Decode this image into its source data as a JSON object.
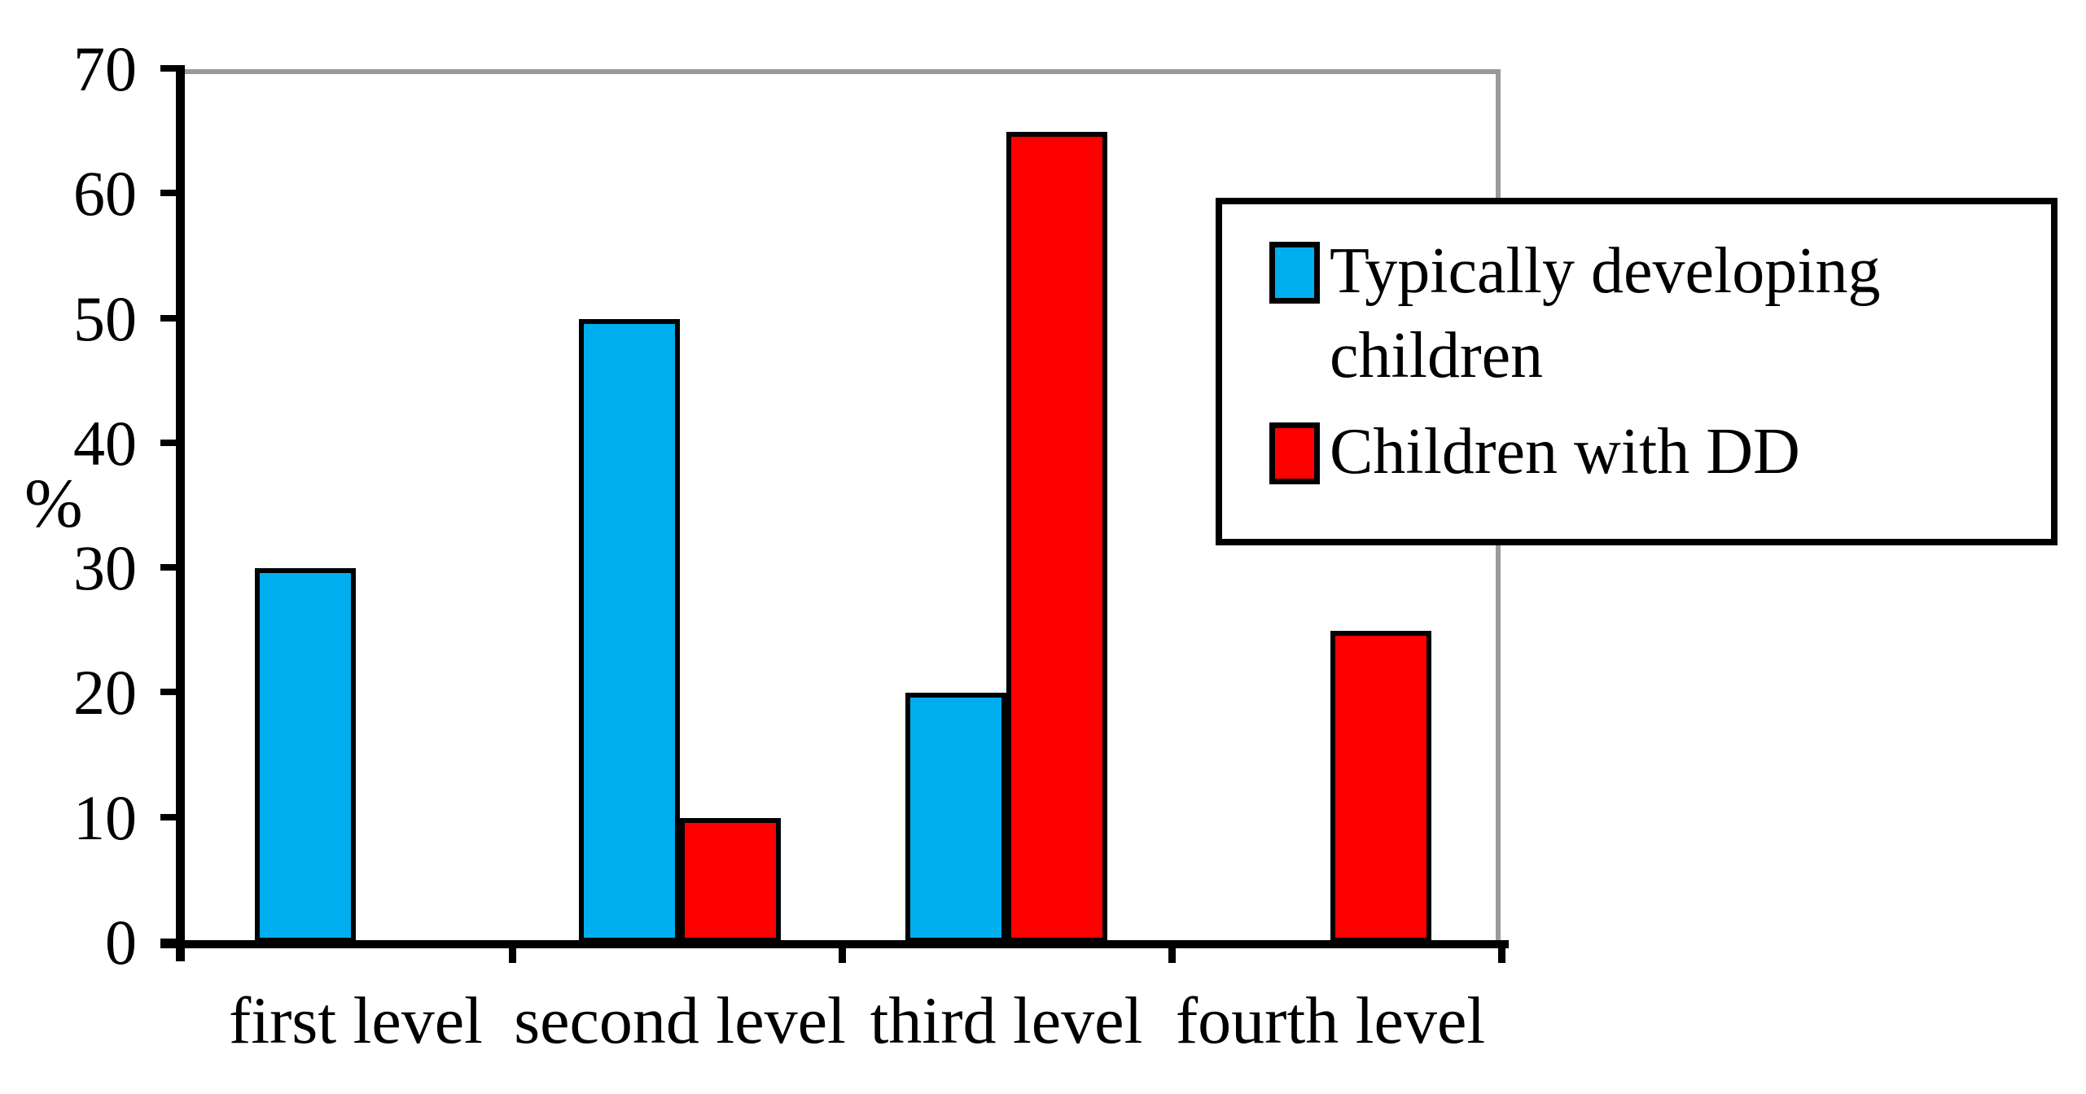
{
  "chart_data": {
    "type": "bar",
    "title": "",
    "categories": [
      "first level",
      "second level",
      "third level",
      "fourth level"
    ],
    "series": [
      {
        "name": "Typically developing children",
        "color": "#00AEEF",
        "values": [
          30,
          50,
          20,
          0
        ]
      },
      {
        "name": "Children with DD",
        "color": "#FF0000",
        "values": [
          0,
          10,
          65,
          25
        ]
      }
    ],
    "xlabel": "",
    "ylabel": "%",
    "ylim": [
      0,
      70
    ],
    "yticks": [
      0,
      10,
      20,
      30,
      40,
      50,
      60,
      70
    ],
    "grid": false,
    "legend_position": "upper right",
    "bar_border_color": "#000000",
    "plot_border_color": "#9a9a9a",
    "axis_color": "#000000"
  }
}
